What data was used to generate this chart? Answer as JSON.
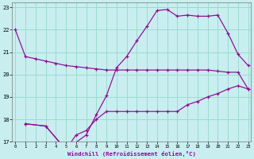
{
  "xlabel": "Windchill (Refroidissement éolien,°C)",
  "background_color": "#c8eef0",
  "grid_color": "#99ddcc",
  "line_color": "#990099",
  "x_ticks": [
    0,
    1,
    2,
    3,
    4,
    5,
    6,
    7,
    8,
    9,
    10,
    11,
    12,
    13,
    14,
    15,
    16,
    17,
    18,
    19,
    20,
    21,
    22,
    23
  ],
  "y_ticks": [
    17,
    18,
    19,
    20,
    21,
    22,
    23
  ],
  "xlim": [
    -0.3,
    23.3
  ],
  "ylim": [
    17,
    23.2
  ],
  "series": [
    {
      "x": [
        0,
        1,
        2,
        3,
        4,
        5,
        6,
        7,
        8,
        9,
        10,
        11,
        12,
        13,
        14,
        15,
        16,
        17,
        18,
        19,
        20,
        21,
        22,
        23
      ],
      "y": [
        22.0,
        20.8,
        20.7,
        20.6,
        20.5,
        20.4,
        20.35,
        20.3,
        20.25,
        20.2,
        20.2,
        20.2,
        20.2,
        20.2,
        20.2,
        20.2,
        20.2,
        20.2,
        20.2,
        20.2,
        20.15,
        20.1,
        20.1,
        19.35
      ]
    },
    {
      "x": [
        1,
        3,
        5,
        7,
        8,
        9,
        10,
        11,
        12,
        13,
        14,
        15,
        16,
        17,
        18,
        19,
        20,
        21,
        22,
        23
      ],
      "y": [
        17.8,
        17.7,
        16.65,
        17.3,
        18.2,
        19.05,
        20.3,
        20.8,
        21.5,
        22.15,
        22.85,
        22.9,
        22.6,
        22.65,
        22.6,
        22.6,
        22.65,
        21.85,
        20.9,
        20.4
      ]
    },
    {
      "x": [
        1,
        3,
        5,
        6,
        7,
        8,
        9,
        10,
        11,
        12,
        13,
        14,
        15,
        16,
        17,
        18,
        19,
        20,
        21,
        22,
        23
      ],
      "y": [
        17.8,
        17.7,
        16.65,
        17.3,
        17.5,
        18.0,
        18.35,
        18.35,
        18.35,
        18.35,
        18.35,
        18.35,
        18.35,
        18.35,
        18.65,
        18.8,
        19.0,
        19.15,
        19.35,
        19.5,
        19.35
      ]
    }
  ]
}
